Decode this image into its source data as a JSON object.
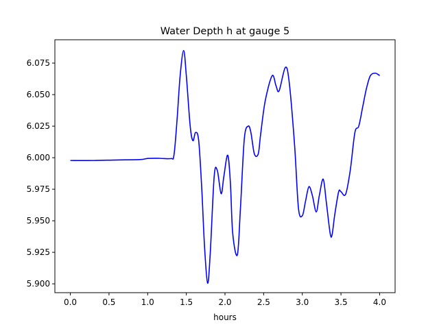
{
  "chart_data": {
    "type": "line",
    "title": "Water Depth h at gauge 5",
    "xlabel": "hours",
    "ylabel": "",
    "xlim": [
      -0.2,
      4.2
    ],
    "ylim": [
      5.893,
      6.0935
    ],
    "grid": false,
    "x_ticks": [
      {
        "value": 0.0,
        "label": "0.0"
      },
      {
        "value": 0.5,
        "label": "0.5"
      },
      {
        "value": 1.0,
        "label": "1.0"
      },
      {
        "value": 1.5,
        "label": "1.5"
      },
      {
        "value": 2.0,
        "label": "2.0"
      },
      {
        "value": 2.5,
        "label": "2.5"
      },
      {
        "value": 3.0,
        "label": "3.0"
      },
      {
        "value": 3.5,
        "label": "3.5"
      },
      {
        "value": 4.0,
        "label": "4.0"
      }
    ],
    "y_ticks": [
      {
        "value": 5.9,
        "label": "5.900"
      },
      {
        "value": 5.925,
        "label": "5.925"
      },
      {
        "value": 5.95,
        "label": "5.950"
      },
      {
        "value": 5.975,
        "label": "5.975"
      },
      {
        "value": 6.0,
        "label": "6.000"
      },
      {
        "value": 6.025,
        "label": "6.025"
      },
      {
        "value": 6.05,
        "label": "6.050"
      },
      {
        "value": 6.075,
        "label": "6.075"
      }
    ],
    "series": [
      {
        "color": "#0000ff",
        "x": [
          0.0,
          0.3,
          0.6,
          0.9,
          1.0,
          1.15,
          1.3,
          1.34,
          1.38,
          1.42,
          1.465,
          1.5,
          1.55,
          1.585,
          1.62,
          1.66,
          1.7,
          1.735,
          1.775,
          1.81,
          1.86,
          1.9,
          1.95,
          1.985,
          2.035,
          2.07,
          2.1,
          2.16,
          2.2,
          2.25,
          2.3,
          2.335,
          2.38,
          2.43,
          2.46,
          2.52,
          2.61,
          2.66,
          2.7,
          2.78,
          2.83,
          2.9,
          2.95,
          3.0,
          3.04,
          3.085,
          3.13,
          3.18,
          3.22,
          3.27,
          3.31,
          3.36,
          3.385,
          3.42,
          3.47,
          3.5,
          3.56,
          3.62,
          3.68,
          3.73,
          3.78,
          3.83,
          3.88,
          3.94,
          3.98,
          4.0
        ],
        "y": [
          5.9978,
          5.9978,
          5.9982,
          5.9985,
          5.9994,
          5.9995,
          5.9993,
          6.002,
          6.03,
          6.065,
          6.085,
          6.065,
          6.025,
          6.0135,
          6.02,
          6.0135,
          5.975,
          5.93,
          5.9005,
          5.925,
          5.985,
          5.99,
          5.9715,
          5.985,
          6.002,
          5.98,
          5.94,
          5.923,
          5.96,
          6.015,
          6.025,
          6.02,
          6.003,
          6.003,
          6.018,
          6.045,
          6.065,
          6.057,
          6.053,
          6.0715,
          6.06,
          6.01,
          5.96,
          5.954,
          5.965,
          5.977,
          5.97,
          5.957,
          5.97,
          5.983,
          5.965,
          5.94,
          5.939,
          5.955,
          5.973,
          5.973,
          5.971,
          5.99,
          6.02,
          6.025,
          6.04,
          6.055,
          6.065,
          6.067,
          6.066,
          6.065
        ]
      }
    ]
  }
}
